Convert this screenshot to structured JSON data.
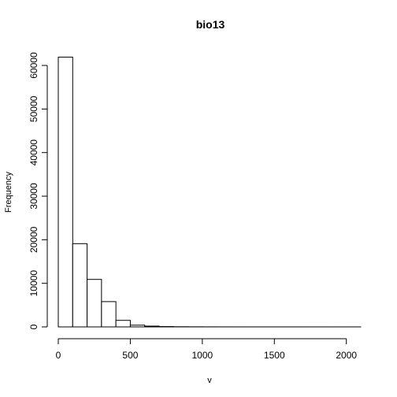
{
  "chart_data": {
    "type": "bar",
    "title": "bio13",
    "xlabel": "v",
    "ylabel": "Frequency",
    "xlim": [
      0,
      2100
    ],
    "ylim": [
      0,
      62000
    ],
    "bin_width": 100,
    "bins": [
      {
        "start": 0,
        "end": 100,
        "count": 61900
      },
      {
        "start": 100,
        "end": 200,
        "count": 19100
      },
      {
        "start": 200,
        "end": 300,
        "count": 10900
      },
      {
        "start": 300,
        "end": 400,
        "count": 5800
      },
      {
        "start": 400,
        "end": 500,
        "count": 1500
      },
      {
        "start": 500,
        "end": 600,
        "count": 400
      },
      {
        "start": 600,
        "end": 700,
        "count": 180
      },
      {
        "start": 700,
        "end": 800,
        "count": 80
      },
      {
        "start": 800,
        "end": 900,
        "count": 40
      },
      {
        "start": 900,
        "end": 1000,
        "count": 25
      },
      {
        "start": 1000,
        "end": 1100,
        "count": 15
      },
      {
        "start": 1100,
        "end": 1200,
        "count": 10
      },
      {
        "start": 1200,
        "end": 1300,
        "count": 8
      },
      {
        "start": 1300,
        "end": 1400,
        "count": 6
      },
      {
        "start": 1400,
        "end": 1500,
        "count": 5
      },
      {
        "start": 1500,
        "end": 1600,
        "count": 4
      },
      {
        "start": 1600,
        "end": 1700,
        "count": 3
      },
      {
        "start": 1700,
        "end": 1800,
        "count": 2
      },
      {
        "start": 1800,
        "end": 1900,
        "count": 2
      },
      {
        "start": 1900,
        "end": 2000,
        "count": 1
      },
      {
        "start": 2000,
        "end": 2100,
        "count": 1
      }
    ],
    "x_ticks": [
      0,
      500,
      1000,
      1500,
      2000
    ],
    "x_tick_labels": [
      "0",
      "500",
      "1000",
      "1500",
      "2000"
    ],
    "y_ticks": [
      0,
      10000,
      20000,
      30000,
      40000,
      50000,
      60000
    ],
    "y_tick_labels": [
      "0",
      "10000",
      "20000",
      "30000",
      "40000",
      "50000",
      "60000"
    ],
    "grid": false,
    "legend": "none"
  }
}
